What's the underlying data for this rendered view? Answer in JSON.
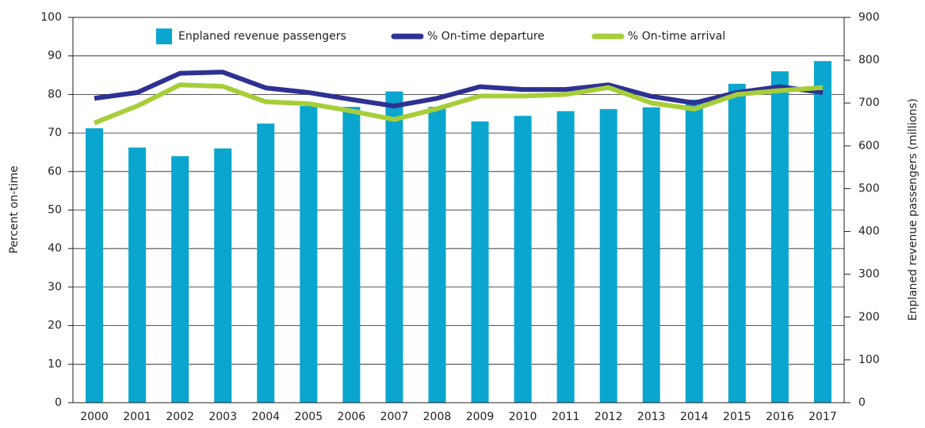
{
  "chart_data": {
    "type": "bar-line",
    "categories": [
      "2000",
      "2001",
      "2002",
      "2003",
      "2004",
      "2005",
      "2006",
      "2007",
      "2008",
      "2009",
      "2010",
      "2011",
      "2012",
      "2013",
      "2014",
      "2015",
      "2016",
      "2017"
    ],
    "series": [
      {
        "name": "Enplaned revenue passengers",
        "type": "bar",
        "axis": "y2",
        "color": "#0aa6cf",
        "values": [
          641,
          596,
          576,
          594,
          652,
          693,
          691,
          727,
          691,
          657,
          670,
          681,
          686,
          690,
          708,
          745,
          774,
          798
        ]
      },
      {
        "name": "% On-time departure",
        "type": "line",
        "color": "#2e3192",
        "values": [
          79,
          80.5,
          85.5,
          85.8,
          81.7,
          80.5,
          78.7,
          77,
          79,
          82,
          81.3,
          81.3,
          82.5,
          79.5,
          77.8,
          80.5,
          82,
          80.5
        ]
      },
      {
        "name": "% On-time arrival",
        "type": "line",
        "color": "#a6ce39",
        "values": [
          72.6,
          77,
          82.5,
          82.1,
          78.1,
          77.6,
          75.7,
          73.5,
          76.3,
          79.6,
          79.6,
          80,
          81.8,
          77.8,
          76.2,
          80,
          81,
          81.8
        ]
      }
    ],
    "ylabel": "Percent on-time",
    "y2label": "Enplaned revenue passengers (millions)",
    "ylim": [
      0,
      100
    ],
    "yticks": [
      0,
      10,
      20,
      30,
      40,
      50,
      60,
      70,
      80,
      90,
      100
    ],
    "y2lim": [
      0,
      900
    ],
    "y2ticks": [
      0,
      100,
      200,
      300,
      400,
      500,
      600,
      700,
      800,
      900
    ],
    "grid": true,
    "legend": "top"
  }
}
